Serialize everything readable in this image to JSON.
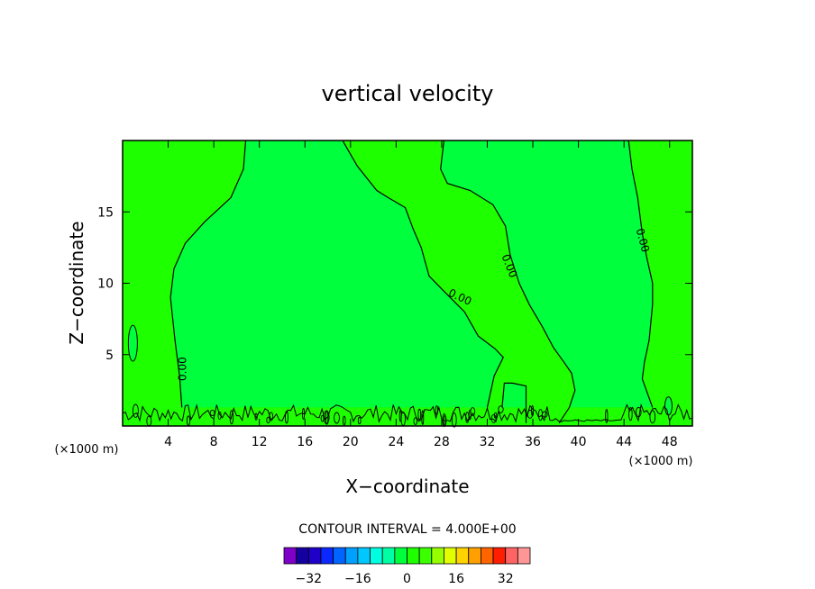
{
  "chart_data": {
    "type": "contour",
    "title": "vertical velocity",
    "xlabel": "X−coordinate",
    "ylabel": "Z−coordinate",
    "x_unit_left": "(×1000 m)",
    "x_unit_right": "(×1000 m)",
    "xlim": [
      0,
      50
    ],
    "ylim": [
      0,
      20
    ],
    "x_ticks": [
      4,
      8,
      12,
      16,
      20,
      24,
      28,
      32,
      36,
      40,
      44,
      48
    ],
    "y_ticks": [
      5,
      10,
      15
    ],
    "contour_label": "0.00",
    "contour_interval_text": "CONTOUR INTERVAL = 4.000E+00",
    "colorbar": {
      "colors": [
        "#7f00c8",
        "#1400a0",
        "#1e00c8",
        "#0a28ff",
        "#0064ff",
        "#00a0ff",
        "#00c8ff",
        "#00ffe1",
        "#00ffa5",
        "#00ff3c",
        "#1eff00",
        "#3cff00",
        "#96ff00",
        "#e1ff00",
        "#ffd200",
        "#ffa000",
        "#ff6400",
        "#ff1e00",
        "#ff6464",
        "#ff9696"
      ],
      "tick_labels": [
        "−32",
        "−16",
        "0",
        "16",
        "32"
      ],
      "tick_values": [
        -32,
        -16,
        0,
        16,
        32
      ],
      "range": [
        -40,
        40
      ]
    },
    "background_color": "#00ff3c",
    "positive_region_color": "#1eff00",
    "grid": false
  }
}
